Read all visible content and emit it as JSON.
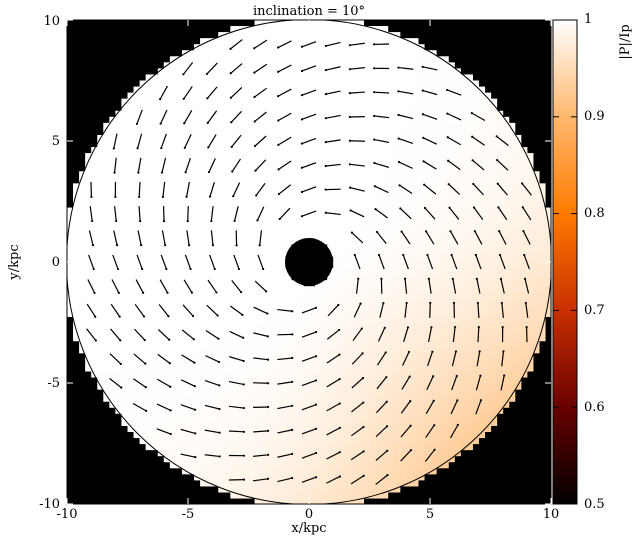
{
  "chart_data": {
    "type": "heatmap",
    "title": "inclination = 10°",
    "xlabel": "x/kpc",
    "ylabel": "y/kpc",
    "xlim": [
      -10,
      10
    ],
    "ylim": [
      -10,
      10
    ],
    "xticks": [
      "-10",
      "-5",
      "0",
      "5",
      "10"
    ],
    "yticks": [
      "-10",
      "-5",
      "0",
      "5",
      "10"
    ],
    "colorbar": {
      "label": "|P|/Ip",
      "range": [
        0.5,
        1.0
      ],
      "ticks": [
        "0.5",
        "0.6",
        "0.7",
        "0.8",
        "0.9",
        "1"
      ],
      "colors": [
        "#000000",
        "#6a0000",
        "#c83000",
        "#ff7a00",
        "#ffb86e",
        "#ffffff"
      ]
    },
    "disk": {
      "outer_radius": 10,
      "hole_radius": 1,
      "background_color": "#000000",
      "min_value": 0.93,
      "min_angle_deg": -45,
      "note_field": "spiral polarization vectors"
    },
    "vectors": {
      "grid_step": 1,
      "length": 0.62,
      "pitch_angle_deg": 20
    }
  }
}
